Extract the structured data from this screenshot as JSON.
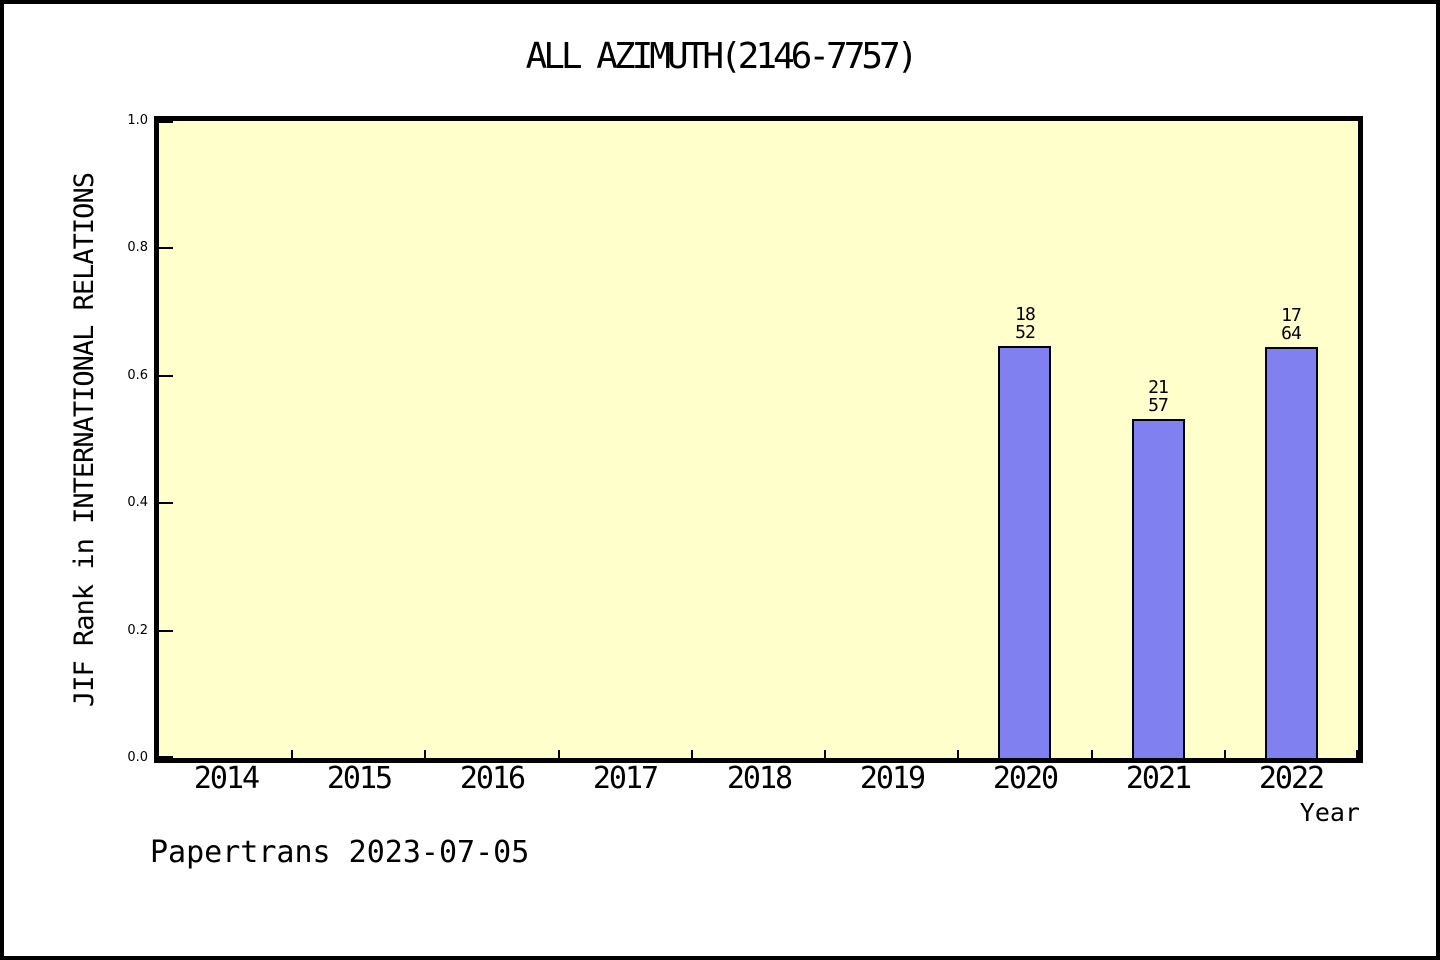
{
  "style": {
    "page_background": "#ffffff",
    "outer_border_color": "#000000",
    "plot_background": "#ffffcc",
    "bar_fill": "#8080f0",
    "bar_border": "#000000",
    "axis_color": "#000000",
    "text_color": "#000000"
  },
  "footer": {
    "watermark": "Papertrans 2023-07-05"
  },
  "chart_data": {
    "type": "bar",
    "title": "ALL AZIMUTH(2146-7757)",
    "xlabel": "Year",
    "ylabel": "JIF Rank in INTERNATIONAL RELATIONS",
    "categories": [
      "2014",
      "2015",
      "2016",
      "2017",
      "2018",
      "2019",
      "2020",
      "2021",
      "2022"
    ],
    "series": [
      {
        "name": "JIF Rank fraction",
        "values": [
          null,
          null,
          null,
          null,
          null,
          null,
          0.647,
          0.532,
          0.645
        ]
      }
    ],
    "bars": [
      {
        "year": "2020",
        "rank": "18",
        "total": "52",
        "height_fraction": 0.647
      },
      {
        "year": "2021",
        "rank": "21",
        "total": "57",
        "height_fraction": 0.532
      },
      {
        "year": "2022",
        "rank": "17",
        "total": "64",
        "height_fraction": 0.645
      }
    ],
    "yticks": [
      "0.0",
      "0.2",
      "0.4",
      "0.6",
      "0.8",
      "1.0"
    ],
    "ylim": [
      0.0,
      1.0
    ],
    "grid": false,
    "legend": null
  }
}
